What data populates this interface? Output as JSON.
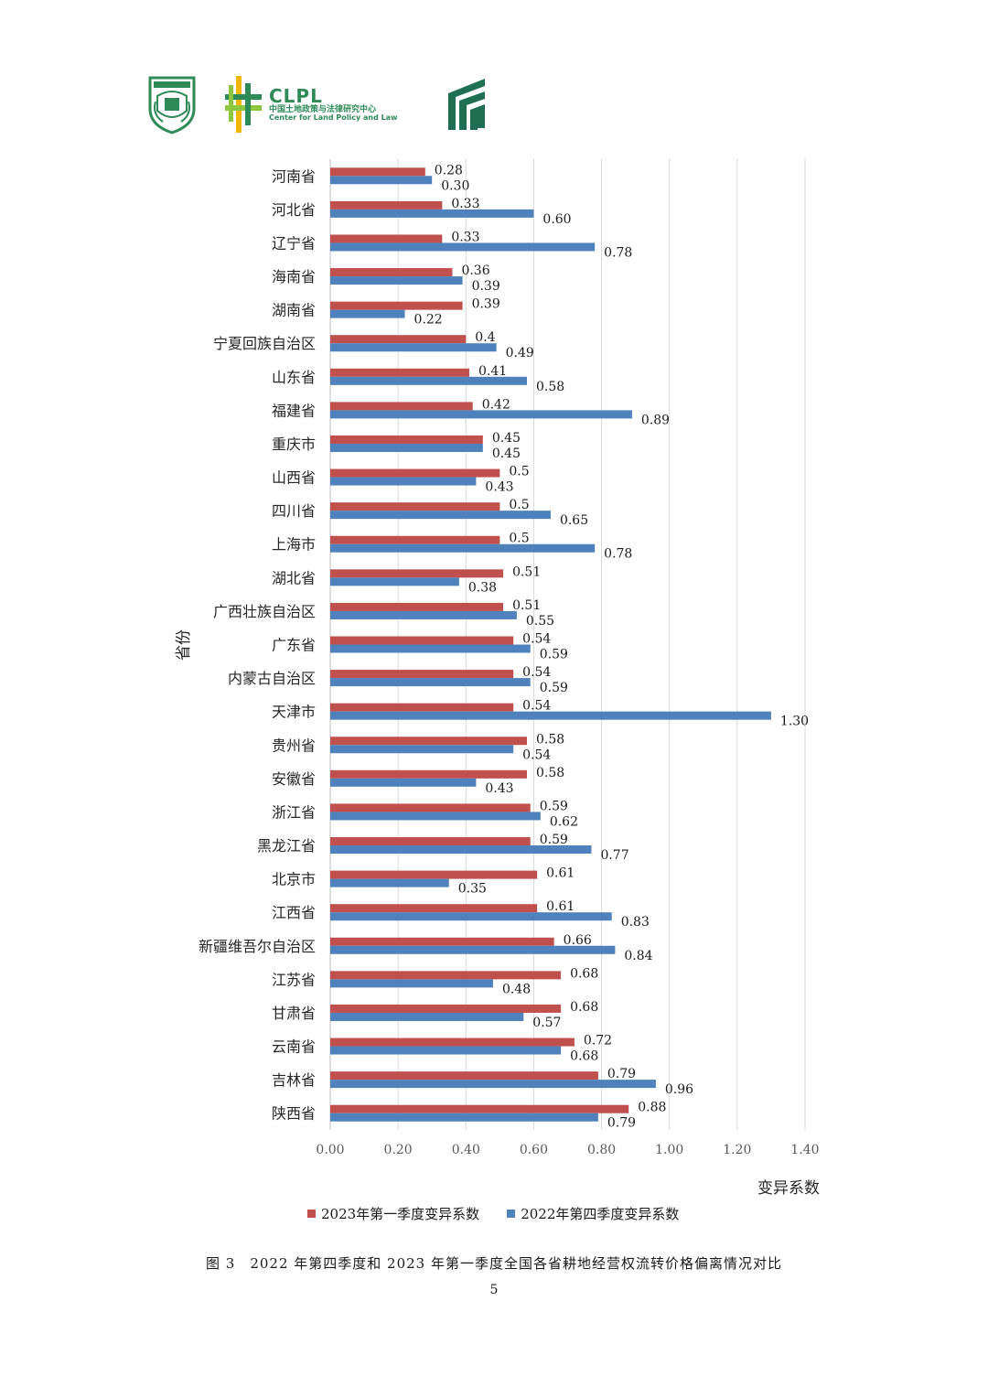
{
  "header": {
    "clpl_title": "CLPL",
    "clpl_cn": "中国土地政策与法律研究中心",
    "clpl_en": "Center for Land Policy and Law",
    "brand_green": "#2e8b57"
  },
  "chart_data": {
    "type": "bar",
    "orientation": "horizontal",
    "ylabel": "省份",
    "xlabel": "变异系数",
    "xlim": [
      0,
      1.4
    ],
    "xticks": [
      "0.00",
      "0.20",
      "0.40",
      "0.60",
      "0.80",
      "1.00",
      "1.20",
      "1.40"
    ],
    "grid": true,
    "legend_position": "bottom",
    "categories": [
      "河南省",
      "河北省",
      "辽宁省",
      "海南省",
      "湖南省",
      "宁夏回族自治区",
      "山东省",
      "福建省",
      "重庆市",
      "山西省",
      "四川省",
      "上海市",
      "湖北省",
      "广西壮族自治区",
      "广东省",
      "内蒙古自治区",
      "天津市",
      "贵州省",
      "安徽省",
      "浙江省",
      "黑龙江省",
      "北京市",
      "江西省",
      "新疆维吾尔自治区",
      "江苏省",
      "甘肃省",
      "云南省",
      "吉林省",
      "陕西省"
    ],
    "series": [
      {
        "name": "2023年第一季度变异系数",
        "color": "#c0504d",
        "values": [
          0.28,
          0.33,
          0.33,
          0.36,
          0.39,
          0.4,
          0.41,
          0.42,
          0.45,
          0.5,
          0.5,
          0.5,
          0.51,
          0.51,
          0.54,
          0.54,
          0.54,
          0.58,
          0.58,
          0.59,
          0.59,
          0.61,
          0.61,
          0.66,
          0.68,
          0.68,
          0.72,
          0.79,
          0.88
        ],
        "labels": [
          "0.28",
          "0.33",
          "0.33",
          "0.36",
          "0.39",
          "0.4",
          "0.41",
          "0.42",
          "0.45",
          "0.5",
          "0.5",
          "0.5",
          "0.51",
          "0.51",
          "0.54",
          "0.54",
          "0.54",
          "0.58",
          "0.58",
          "0.59",
          "0.59",
          "0.61",
          "0.61",
          "0.66",
          "0.68",
          "0.68",
          "0.72",
          "0.79",
          "0.88"
        ]
      },
      {
        "name": "2022年第四季度变异系数",
        "color": "#4f81bd",
        "values": [
          0.3,
          0.6,
          0.78,
          0.39,
          0.22,
          0.49,
          0.58,
          0.89,
          0.45,
          0.43,
          0.65,
          0.78,
          0.38,
          0.55,
          0.59,
          0.59,
          1.3,
          0.54,
          0.43,
          0.62,
          0.77,
          0.35,
          0.83,
          0.84,
          0.48,
          0.57,
          0.68,
          0.96,
          0.79
        ],
        "labels": [
          "0.30",
          "0.60",
          "0.78",
          "0.39",
          "0.22",
          "0.49",
          "0.58",
          "0.89",
          "0.45",
          "0.43",
          "0.65",
          "0.78",
          "0.38",
          "0.55",
          "0.59",
          "0.59",
          "1.30",
          "0.54",
          "0.43",
          "0.62",
          "0.77",
          "0.35",
          "0.83",
          "0.84",
          "0.48",
          "0.57",
          "0.68",
          "0.96",
          "0.79"
        ]
      }
    ]
  },
  "caption": "图 3　2022 年第四季度和 2023 年第一季度全国各省耕地经营权流转价格偏离情况对比",
  "page_number": "5"
}
